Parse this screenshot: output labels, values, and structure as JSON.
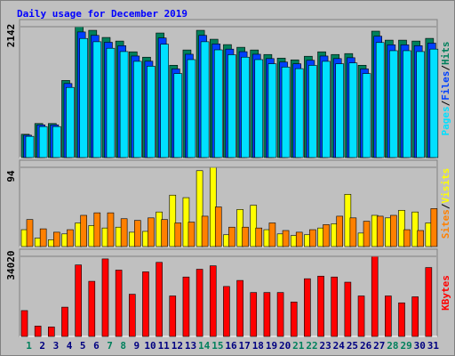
{
  "chart_data": {
    "title": "Daily usage for December 2019",
    "categories": [
      "1",
      "2",
      "3",
      "4",
      "5",
      "6",
      "7",
      "8",
      "9",
      "10",
      "11",
      "12",
      "13",
      "14",
      "15",
      "16",
      "17",
      "18",
      "19",
      "20",
      "21",
      "22",
      "23",
      "24",
      "25",
      "26",
      "27",
      "28",
      "29",
      "30",
      "31"
    ],
    "category_colors": [
      "#00805c",
      "#000080",
      "#000080",
      "#000080",
      "#000080",
      "#000080",
      "#00805c",
      "#00805c",
      "#000080",
      "#000080",
      "#000080",
      "#000080",
      "#000080",
      "#00805c",
      "#00805c",
      "#000080",
      "#000080",
      "#000080",
      "#000080",
      "#000080",
      "#00805c",
      "#00805c",
      "#000080",
      "#000080",
      "#000080",
      "#000080",
      "#000080",
      "#00805c",
      "#00805c",
      "#000080",
      "#000080"
    ],
    "legend_separator": "/",
    "panels": [
      {
        "type": "bar",
        "ylim": [
          0,
          2142
        ],
        "yticks": [
          2142
        ],
        "series": [
          {
            "name": "Hits",
            "color": "#00805c",
            "values": [
              381,
              557,
              557,
              1262,
              2142,
              2083,
              1966,
              1907,
              1731,
              1643,
              2039,
              1511,
              1761,
              2083,
              1937,
              1849,
              1805,
              1761,
              1687,
              1628,
              1599,
              1658,
              1731,
              1687,
              1702,
              1511,
              2069,
              1922,
              1922,
              1907,
              1951
            ]
          },
          {
            "name": "Files",
            "color": "#0040ff",
            "values": [
              366,
              535,
              535,
              1212,
              2056,
              2000,
              1887,
              1831,
              1662,
              1577,
              1957,
              1451,
              1691,
              2000,
              1860,
              1775,
              1733,
              1691,
              1620,
              1563,
              1535,
              1592,
              1662,
              1620,
              1634,
              1451,
              1986,
              1845,
              1845,
              1831,
              1873
            ]
          },
          {
            "name": "Pages",
            "color": "#00e0ff",
            "values": [
              347,
              507,
              507,
              1148,
              1949,
              1896,
              1789,
              1735,
              1575,
              1495,
              1855,
              1375,
              1603,
              1896,
              1763,
              1683,
              1643,
              1603,
              1535,
              1481,
              1455,
              1509,
              1575,
              1535,
              1549,
              1375,
              1883,
              1749,
              1749,
              1735,
              1775
            ]
          }
        ]
      },
      {
        "type": "bar",
        "ylim": [
          0,
          94
        ],
        "yticks": [
          94
        ],
        "series": [
          {
            "name": "Visits",
            "color": "#ffff00",
            "values": [
              20,
              10,
              8,
              15,
              28,
              25,
              22,
              23,
              17,
              18,
              41,
              61,
              58,
              90,
              94,
              14,
              44,
              49,
              20,
              15,
              13,
              14,
              22,
              27,
              62,
              16,
              37,
              34,
              43,
              41,
              28
            ]
          },
          {
            "name": "Sites",
            "color": "#ff8000",
            "values": [
              32,
              21,
              17,
              20,
              37,
              40,
              40,
              33,
              31,
              34,
              32,
              28,
              29,
              36,
              47,
              23,
              23,
              22,
              28,
              19,
              17,
              20,
              26,
              36,
              34,
              30,
              36,
              37,
              20,
              19,
              45
            ]
          }
        ]
      },
      {
        "type": "bar",
        "ylim": [
          0,
          34020
        ],
        "yticks": [
          34020
        ],
        "series": [
          {
            "name": "KBytes",
            "color": "#ff0000",
            "values": [
              10974,
              4390,
              4024,
              12437,
              30362,
              23411,
              32923,
              28167,
              17924,
              27435,
              31459,
              17193,
              25240,
              28533,
              29996,
              21217,
              23777,
              18656,
              18656,
              18656,
              14632,
              24509,
              25606,
              25240,
              23046,
              17193,
              34020,
              17193,
              14266,
              16827,
              29264
            ]
          }
        ]
      }
    ]
  }
}
